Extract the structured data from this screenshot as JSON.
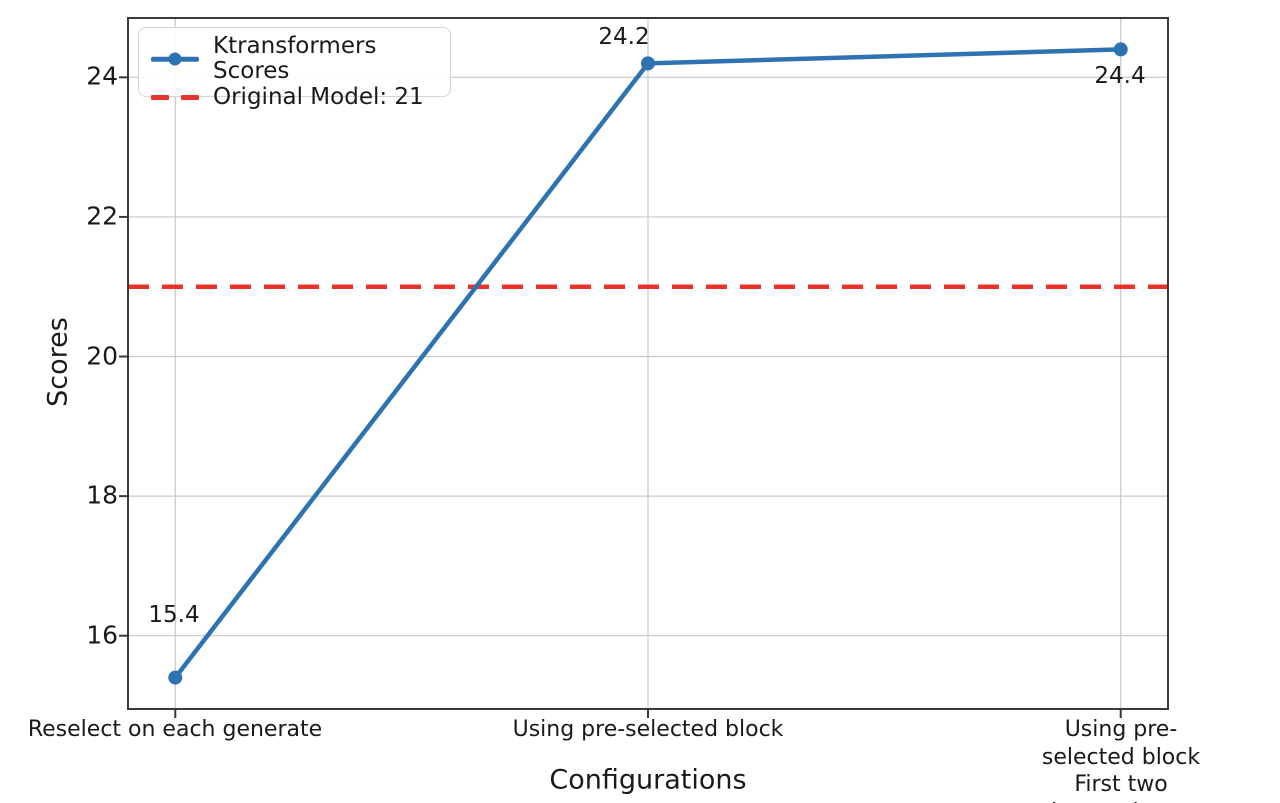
{
  "chart_data": {
    "type": "line",
    "xlabel": "Configurations",
    "ylabel": "Scores",
    "categories": [
      "Reselect on each generate",
      "Using pre-selected block",
      "Using pre-selected block\nFirst two layers dense"
    ],
    "series": [
      {
        "name": "Ktransformers Scores",
        "values": [
          15.4,
          24.2,
          24.4
        ]
      }
    ],
    "point_labels": [
      "15.4",
      "24.2",
      "24.4"
    ],
    "reference_line": {
      "label": "Original Model: 21",
      "value": 21
    },
    "legend": [
      "Ktransformers Scores",
      "Original Model: 21"
    ],
    "legend_position": "upper-left",
    "yticks": [
      16,
      18,
      20,
      22,
      24
    ],
    "ylim": [
      14.95,
      24.85
    ],
    "xlim": [
      -0.1,
      2.1
    ],
    "grid": true
  },
  "colors": {
    "series": "#2e73b1",
    "reference": "#e8332a",
    "grid": "#c8c8c8",
    "spine": "#3a3a3a",
    "text": "#1a1a1a"
  }
}
